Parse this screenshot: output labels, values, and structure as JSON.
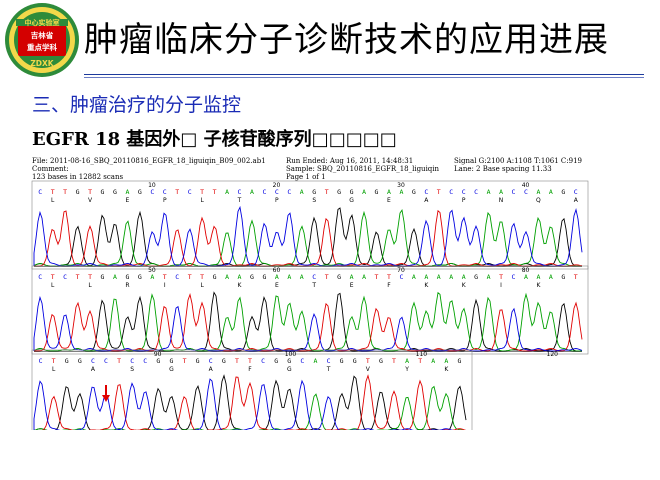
{
  "logo": {
    "line1": "中心实验室",
    "line2": "吉林省",
    "line3": "重点学科",
    "line4": "ZDXK"
  },
  "slide": {
    "title": "肿瘤临床分子诊断技术的应用进展",
    "section": "三、肿瘤治疗的分子监控",
    "caption": "EGFR 18 基因外□ 子核苷酸序列□□□□□"
  },
  "trace_header": {
    "file": "File: 2011-08-16_SBQ_20110816_EGFR_18_liguiqin_B09_002.ab1",
    "comment": "Comment:",
    "bases": "123 bases in 12882 scans",
    "run_ended": "Run Ended:  Aug 16, 2011, 14:48:31",
    "sample": "Sample: SBQ_20110816_EGFR_18_liguiqin",
    "page": "Page 1 of 1",
    "signal": "Signal G:2100 A:1108 T:1061 C:919",
    "lane": "Lane: 2   Base spacing 11.33"
  },
  "rows": [
    {
      "bases": "CTTGTGGAGCCTCTTACACCCAGTGGAGAAGCTCCCAACCAAGC",
      "aa": [
        "L",
        "V",
        "E",
        "P",
        "L",
        "T",
        "P",
        "S",
        "G",
        "E",
        "A",
        "P",
        "N",
        "Q",
        "A"
      ],
      "ticks": [
        "10",
        "20",
        "30",
        "40"
      ]
    },
    {
      "bases": "CTCTTGAGGATCTTGAAGGAAACTGAATTCAAAAAGATCAAAGT",
      "aa": [
        "L",
        "L",
        "R",
        "I",
        "L",
        "K",
        "E",
        "T",
        "E",
        "F",
        "K",
        "K",
        "I",
        "K"
      ],
      "ticks": [
        "50",
        "60",
        "70",
        "80"
      ]
    },
    {
      "bases": "CTGGCCTCCGGTGCGTTCGGCACGGTGTATAAG",
      "aa": [
        "L",
        "A",
        "S",
        "G",
        "A",
        "F",
        "G",
        "T",
        "V",
        "Y",
        "K"
      ],
      "ticks": [
        "90",
        "100",
        "110",
        "120"
      ]
    }
  ],
  "colors": {
    "A": "#00a000",
    "C": "#0000e0",
    "G": "#000000",
    "T": "#e00000",
    "title_rule": "#1d3a9c",
    "section": "#1a2bb5",
    "arrow": "#e00000",
    "logo_green": "#2e8b3a",
    "logo_red": "#d40000"
  },
  "annotation": {
    "arrow_icon": "down-arrow-icon",
    "marked_base_row": 3,
    "marked_base_index": 5
  }
}
